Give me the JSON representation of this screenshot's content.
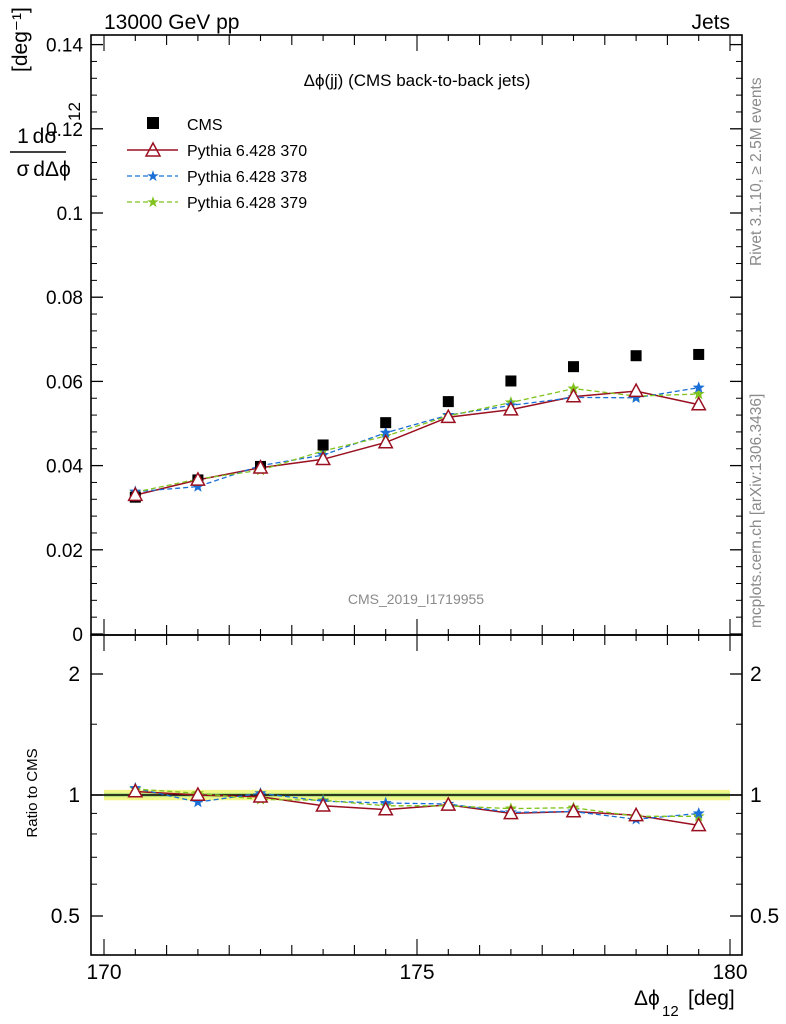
{
  "header": {
    "left": "13000 GeV pp",
    "right": "Jets"
  },
  "side_labels": {
    "rivet": "Rivet 3.1.10, ≥ 2.5M events",
    "mcplots": "mcplots.cern.ch [arXiv:1306.3436]"
  },
  "watermark": "CMS_2019_I1719955",
  "colors": {
    "cms": "#000000",
    "p370": "#9a1020",
    "p378": "#1a6fd6",
    "p379": "#7fc31c",
    "band_outer": "#f3f78a",
    "band_inner": "#b6e07a"
  },
  "chart_data": [
    {
      "type": "scatter",
      "panel": "main",
      "title": "Δϕ(jj) (CMS back-to-back jets)",
      "ylabel": "1/σ dσ/dΔϕ12 [deg⁻¹]",
      "xlim": [
        170,
        180
      ],
      "ylim": [
        0,
        0.142
      ],
      "yticks": [
        "0",
        "0.02",
        "0.04",
        "0.06",
        "0.08",
        "0.1",
        "0.12",
        "0.14"
      ],
      "x": [
        170.5,
        171.5,
        172.5,
        173.5,
        174.5,
        175.5,
        176.5,
        177.5,
        178.5,
        179.5
      ],
      "series": [
        {
          "name": "CMS",
          "marker": "square",
          "values": [
            0.0325,
            0.0366,
            0.0398,
            0.0449,
            0.0502,
            0.0552,
            0.0601,
            0.0635,
            0.0661,
            0.0664
          ]
        },
        {
          "name": "Pythia 6.428 370",
          "marker": "triangle",
          "line": "solid",
          "values": [
            0.033,
            0.0366,
            0.0395,
            0.0415,
            0.0455,
            0.0515,
            0.0533,
            0.0564,
            0.0577,
            0.0545
          ]
        },
        {
          "name": "Pythia 6.428 378",
          "marker": "star",
          "line": "dashed",
          "values": [
            0.0338,
            0.035,
            0.04,
            0.0425,
            0.0478,
            0.052,
            0.0543,
            0.0562,
            0.0561,
            0.0585
          ]
        },
        {
          "name": "Pythia 6.428 379",
          "marker": "star",
          "line": "dashed",
          "values": [
            0.0337,
            0.0368,
            0.0389,
            0.0435,
            0.047,
            0.0518,
            0.055,
            0.0583,
            0.0565,
            0.057
          ]
        }
      ],
      "legend": "top-left"
    },
    {
      "type": "line",
      "panel": "ratio",
      "ylabel": "Ratio to CMS",
      "xlabel": "Δϕ12 [deg]",
      "xlim": [
        170,
        180
      ],
      "ylim": [
        0.38,
        2.35
      ],
      "yscale": "log",
      "yticks": [
        "0.5",
        "1",
        "2"
      ],
      "xticks": [
        "170",
        "175",
        "180"
      ],
      "x": [
        170.5,
        171.5,
        172.5,
        173.5,
        174.5,
        175.5,
        176.5,
        177.5,
        178.5,
        179.5
      ],
      "series": [
        {
          "name": "Pythia 6.428 370",
          "values": [
            1.02,
            1.0,
            0.99,
            0.94,
            0.92,
            0.945,
            0.9,
            0.91,
            0.89,
            0.84
          ]
        },
        {
          "name": "Pythia 6.428 378",
          "values": [
            1.04,
            0.96,
            1.01,
            0.965,
            0.955,
            0.95,
            0.905,
            0.91,
            0.87,
            0.9
          ]
        },
        {
          "name": "Pythia 6.428 379",
          "values": [
            1.035,
            1.01,
            0.975,
            0.97,
            0.94,
            0.94,
            0.925,
            0.93,
            0.885,
            0.885
          ]
        }
      ],
      "band": {
        "inner": 0.012,
        "outer": 0.03
      }
    }
  ]
}
